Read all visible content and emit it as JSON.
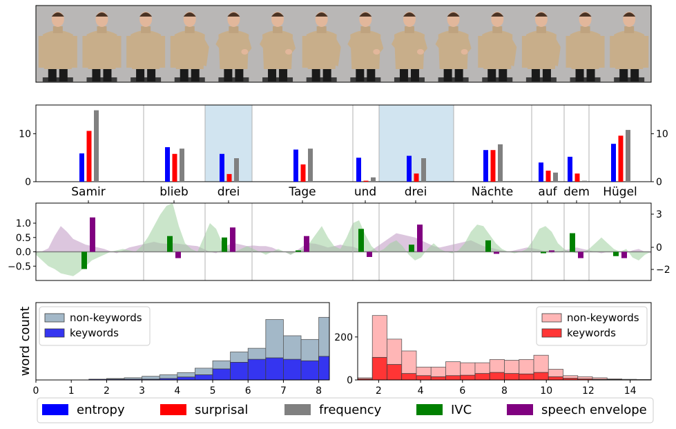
{
  "colors": {
    "entropy": "#0000ff",
    "surprisal": "#ff0000",
    "frequency": "#808080",
    "ivc": "#008000",
    "speech_envelope": "#800080",
    "keyword_highlight": "#d1e4f0",
    "hist_left_nonkw": "#a3b8c8",
    "hist_left_kw": "#3535f0",
    "hist_right_nonkw": "#ffb6b6",
    "hist_right_kw": "#ff3535"
  },
  "video_strip": {
    "frame_count": 14,
    "icon": "person-frame-icon"
  },
  "chart_data": [
    {
      "type": "bar",
      "panel": "word-features",
      "categories": [
        "Samir",
        "blieb",
        "drei",
        "Tage",
        "und",
        "drei",
        "Nächte",
        "auf",
        "dem",
        "Hügel"
      ],
      "highlighted": [
        "drei",
        "drei"
      ],
      "ylim": [
        0,
        16
      ],
      "yticks_left": [
        "0",
        "10"
      ],
      "yticks_right": [
        "0",
        "10"
      ],
      "grid": false,
      "series": [
        {
          "name": "entropy",
          "values": [
            5.9,
            7.2,
            5.8,
            6.7,
            5.0,
            5.4,
            6.6,
            4.0,
            5.2,
            7.9
          ]
        },
        {
          "name": "surprisal",
          "values": [
            10.6,
            5.8,
            1.6,
            3.6,
            0.2,
            1.7,
            6.6,
            2.3,
            1.7,
            9.6
          ]
        },
        {
          "name": "frequency",
          "values": [
            14.9,
            6.9,
            4.9,
            6.9,
            0.9,
            4.9,
            7.8,
            1.9,
            0.2,
            10.8
          ]
        }
      ]
    },
    {
      "type": "area",
      "panel": "signals",
      "ylim_left": [
        -1.0,
        1.7
      ],
      "yticks_left": [
        "−0.5",
        "0.0",
        "0.5",
        "1.0"
      ],
      "yticks_right": [
        "−2",
        "0",
        "3"
      ],
      "series": [
        {
          "name": "speech envelope",
          "values": [
            -0.06,
            0.02,
            0.12,
            0.55,
            0.9,
            0.7,
            0.45,
            0.35,
            0.25,
            0.2,
            0.15,
            0.1,
            0.02,
            -0.05,
            0.05,
            0.15,
            0.2,
            0.25,
            0.3,
            0.35,
            0.3,
            0.28,
            0.3,
            0.28,
            0.25,
            0.22,
            0.2,
            0.1,
            0.0,
            -0.05,
            0.1,
            0.25,
            0.3,
            0.25,
            0.2,
            0.22,
            0.2,
            0.2,
            0.15,
            0.05,
            0.0,
            -0.1,
            0.05,
            0.2,
            0.3,
            0.28,
            0.22,
            0.15,
            0.2,
            0.25,
            0.2,
            0.18,
            0.1,
            0.0,
            0.05,
            0.2,
            0.35,
            0.5,
            0.65,
            0.6,
            0.55,
            0.5,
            0.4,
            0.3,
            0.2,
            0.15,
            0.2,
            0.25,
            0.3,
            0.35,
            0.4,
            0.3,
            0.2,
            0.15,
            0.1,
            0.05,
            0.0,
            0.05,
            0.1,
            0.15,
            0.12,
            0.08,
            0.0,
            -0.05,
            0.0,
            0.05,
            0.1,
            0.15,
            0.1,
            0.05,
            0.0,
            -0.05,
            0.0,
            0.02,
            0.0,
            -0.05,
            0.05,
            0.1,
            0.0,
            -0.05
          ]
        },
        {
          "name": "IVC",
          "values": [
            -0.1,
            -0.3,
            -0.5,
            -0.6,
            -0.75,
            -0.8,
            -0.85,
            -0.7,
            -0.5,
            -0.3,
            -0.2,
            -0.1,
            0.0,
            0.05,
            0.1,
            0.05,
            0.0,
            0.2,
            0.5,
            0.9,
            1.3,
            1.6,
            1.7,
            0.9,
            0.3,
            0.1,
            0.0,
            0.5,
            1.0,
            0.8,
            0.3,
            0.1,
            0.0,
            0.1,
            0.2,
            0.1,
            0.0,
            -0.1,
            0.0,
            0.1,
            0.0,
            -0.1,
            0.0,
            0.1,
            0.3,
            0.6,
            0.9,
            0.5,
            0.2,
            0.1,
            0.5,
            1.0,
            1.1,
            0.6,
            0.2,
            0.0,
            0.1,
            0.3,
            0.4,
            0.2,
            -0.1,
            -0.3,
            -0.2,
            0.1,
            0.3,
            0.1,
            0.0,
            -0.05,
            0.05,
            0.3,
            0.7,
            0.95,
            0.9,
            0.6,
            0.3,
            0.1,
            0.0,
            -0.05,
            0.0,
            0.1,
            0.4,
            0.8,
            0.9,
            0.7,
            0.3,
            0.1,
            0.0,
            -0.05,
            0.0,
            0.1,
            0.3,
            0.5,
            0.3,
            0.1,
            0.0,
            0.1,
            -0.2,
            -0.3,
            -0.1,
            0.0
          ]
        }
      ],
      "word_bars": {
        "ivc": [
          -0.6,
          0.55,
          0.5,
          0.05,
          0.8,
          0.25,
          0.4,
          -0.05,
          0.65,
          -0.15
        ],
        "speech_envelope": [
          1.2,
          -0.22,
          0.85,
          0.55,
          -0.18,
          0.95,
          -0.07,
          0.05,
          -0.22,
          -0.22
        ]
      }
    },
    {
      "type": "bar",
      "panel": "histogram-left",
      "xticks": [
        "0",
        "1",
        "2",
        "3",
        "4",
        "5",
        "6",
        "7",
        "8"
      ],
      "xlim": [
        0,
        8.3
      ],
      "ylabel": "word count",
      "bins_start": 0,
      "bin_width": 0.5,
      "series": [
        {
          "name": "non-keywords",
          "values": [
            0,
            0,
            0,
            1,
            2,
            3,
            5,
            7,
            10,
            16,
            26,
            38,
            43,
            82,
            60,
            55,
            85,
            100
          ]
        },
        {
          "name": "keywords",
          "values": [
            0,
            0,
            0,
            1,
            1,
            1,
            1,
            2,
            4,
            7,
            15,
            24,
            28,
            30,
            28,
            26,
            32,
            38
          ]
        }
      ]
    },
    {
      "type": "bar",
      "panel": "histogram-right",
      "xticks": [
        "2",
        "4",
        "6",
        "8",
        "10",
        "12",
        "14"
      ],
      "yticks": [
        "0",
        "200"
      ],
      "xlim": [
        1,
        15
      ],
      "bins_start": 1,
      "bin_width": 0.7,
      "series": [
        {
          "name": "non-keywords",
          "values": [
            10,
            300,
            190,
            135,
            60,
            60,
            85,
            80,
            80,
            95,
            92,
            95,
            115,
            50,
            20,
            15,
            10,
            5,
            3,
            2
          ]
        },
        {
          "name": "keywords",
          "values": [
            5,
            105,
            72,
            30,
            20,
            15,
            20,
            22,
            30,
            35,
            30,
            28,
            35,
            15,
            8,
            5,
            3,
            2,
            1,
            1
          ]
        }
      ]
    }
  ],
  "legend_bottom": [
    {
      "label": "entropy",
      "color_key": "entropy"
    },
    {
      "label": "surprisal",
      "color_key": "surprisal"
    },
    {
      "label": "frequency",
      "color_key": "frequency"
    },
    {
      "label": "IVC",
      "color_key": "ivc"
    },
    {
      "label": "speech envelope",
      "color_key": "speech_envelope"
    }
  ],
  "legend_hist_left": [
    "non-keywords",
    "keywords"
  ],
  "legend_hist_right": [
    "non-keywords",
    "keywords"
  ]
}
